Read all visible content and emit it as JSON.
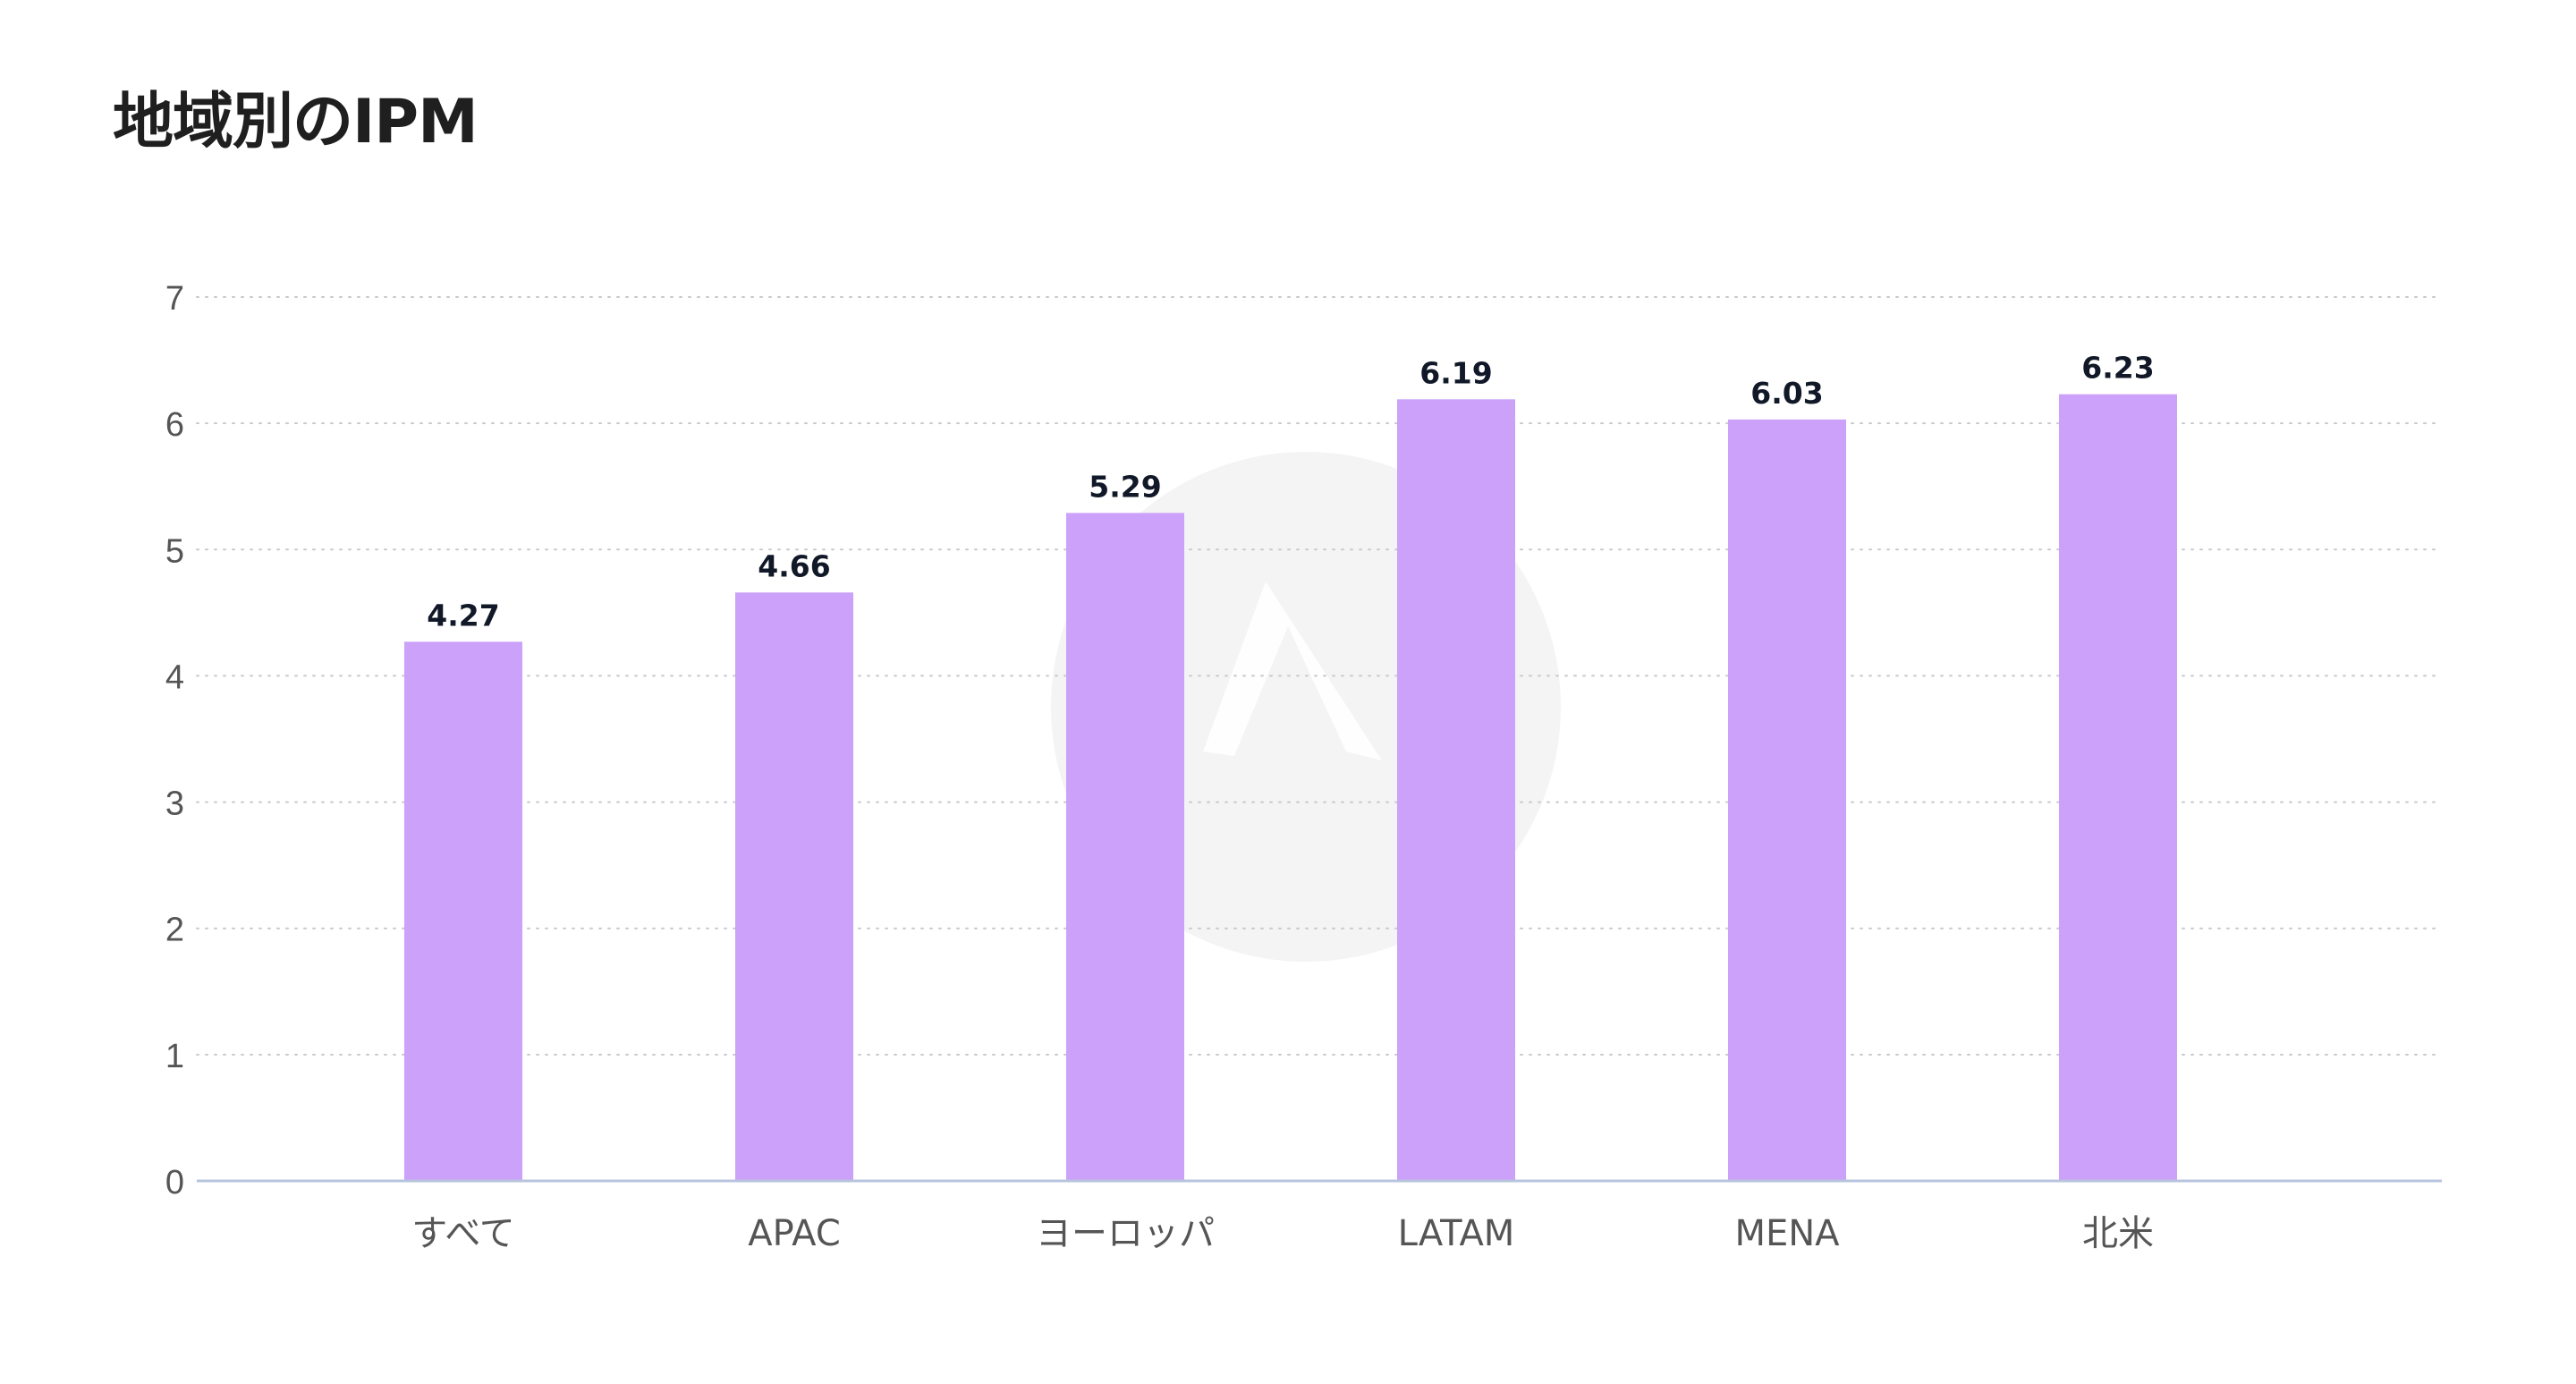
{
  "title": "地域別のIPM",
  "chart_data": {
    "type": "bar",
    "title": "地域別のIPM",
    "xlabel": "",
    "ylabel": "",
    "categories": [
      "すべて",
      "APAC",
      "ヨーロッパ",
      "LATAM",
      "MENA",
      "北米"
    ],
    "values": [
      4.27,
      4.66,
      5.29,
      6.19,
      6.03,
      6.23
    ],
    "ylim": [
      0,
      7
    ],
    "yticks": [
      "0",
      "1",
      "2",
      "3",
      "4",
      "5",
      "6",
      "7"
    ],
    "data_labels": [
      "4.27",
      "4.66",
      "5.29",
      "6.19",
      "6.03",
      "6.23"
    ],
    "grid": "horizontal dotted",
    "legend": "none",
    "colors": {
      "bar": "#cba1fa",
      "grid": "#c9c9c9",
      "axis": "#b8c4de",
      "tick_text": "#555555",
      "label_text": "#111827",
      "watermark": "#f4f4f4"
    }
  }
}
